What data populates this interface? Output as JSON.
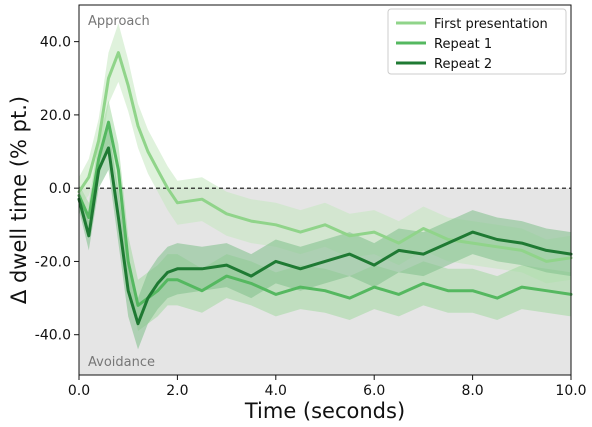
{
  "chart_data": {
    "type": "line",
    "title": "",
    "xlabel": "Time (seconds)",
    "ylabel": "Δ dwell time (% pt.)",
    "xlim": [
      0.0,
      10.0
    ],
    "ylim": [
      -51.0,
      50.0
    ],
    "x_ticks": [
      "0.0",
      "2.0",
      "4.0",
      "6.0",
      "8.0",
      "10.0"
    ],
    "x_tick_values": [
      0.0,
      2.0,
      4.0,
      6.0,
      8.0,
      10.0
    ],
    "y_ticks": [
      "40.0",
      "20.0",
      "0.0",
      "-20.0",
      "-40.0"
    ],
    "y_tick_values": [
      40.0,
      20.0,
      0.0,
      -20.0,
      -40.0
    ],
    "annotations": {
      "top": "Approach",
      "bottom": "Avoidance"
    },
    "reference_line": {
      "y": 0.0,
      "style": "dashed"
    },
    "shaded_region": {
      "from": -51.0,
      "to": 0.0,
      "color": "#e5e5e5"
    },
    "grid": false,
    "legend_position": "top-right",
    "x": [
      0.0,
      0.2,
      0.4,
      0.6,
      0.8,
      1.0,
      1.2,
      1.4,
      1.6,
      1.8,
      2.0,
      2.5,
      3.0,
      3.5,
      4.0,
      4.5,
      5.0,
      5.5,
      6.0,
      6.5,
      7.0,
      7.5,
      8.0,
      8.5,
      9.0,
      9.5,
      10.0
    ],
    "series": [
      {
        "name": "First presentation",
        "color": "#90d48a",
        "band_color": "#c5e8bf",
        "values": [
          -1,
          3,
          13,
          30,
          37,
          28,
          17,
          10,
          5,
          0,
          -4,
          -3,
          -7,
          -9,
          -10,
          -12,
          -10,
          -13,
          -12,
          -15,
          -11,
          -14,
          -15,
          -16,
          -17,
          -20,
          -19
        ],
        "band": [
          4,
          5,
          6,
          7,
          8,
          7,
          6,
          6,
          6,
          6,
          6,
          6,
          6,
          6,
          6,
          6,
          6,
          6,
          6,
          6,
          6,
          6,
          6,
          6,
          6,
          6,
          6
        ]
      },
      {
        "name": "Repeat 1",
        "color": "#55b860",
        "band_color": "#a3d8a0",
        "values": [
          -2,
          -8,
          8,
          18,
          5,
          -20,
          -32,
          -30,
          -28,
          -25,
          -25,
          -28,
          -24,
          -26,
          -29,
          -27,
          -28,
          -30,
          -27,
          -29,
          -26,
          -28,
          -28,
          -30,
          -27,
          -28,
          -29
        ],
        "band": [
          3,
          4,
          5,
          6,
          7,
          7,
          7,
          7,
          7,
          7,
          7,
          6,
          6,
          6,
          6,
          6,
          6,
          6,
          6,
          6,
          6,
          6,
          6,
          6,
          6,
          6,
          6
        ]
      },
      {
        "name": "Repeat 2",
        "color": "#1f7a33",
        "band_color": "#7fc08a",
        "values": [
          -3,
          -13,
          5,
          11,
          -8,
          -28,
          -37,
          -30,
          -26,
          -23,
          -22,
          -22,
          -21,
          -24,
          -20,
          -22,
          -20,
          -18,
          -21,
          -17,
          -18,
          -15,
          -12,
          -14,
          -15,
          -17,
          -18
        ],
        "band": [
          3,
          4,
          5,
          6,
          7,
          7,
          7,
          7,
          7,
          7,
          7,
          6,
          6,
          6,
          6,
          6,
          6,
          6,
          6,
          6,
          6,
          6,
          6,
          6,
          6,
          6,
          6
        ]
      }
    ]
  }
}
